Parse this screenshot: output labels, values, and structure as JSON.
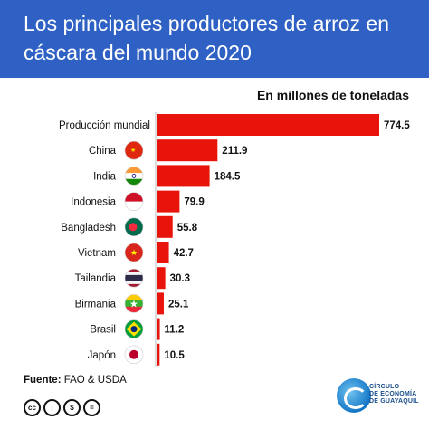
{
  "header": {
    "title": "Los principales productores de arroz en cáscara del mundo 2020"
  },
  "subtitle": "En millones de toneladas",
  "source": {
    "label": "Fuente:",
    "value": "FAO & USDA"
  },
  "logo_text": [
    "CÍRCULO",
    "DE ECONOMÍA",
    "DE GUAYAQUIL"
  ],
  "colors": {
    "header": "#2f61c4",
    "bar": "#e8140c"
  },
  "chart_data": {
    "type": "bar",
    "orientation": "horizontal",
    "title": "Los principales productores de arroz en cáscara del mundo 2020",
    "subtitle": "En millones de toneladas",
    "categories": [
      "Producción mundial",
      "China",
      "India",
      "Indonesia",
      "Bangladesh",
      "Vietnam",
      "Tailandia",
      "Birmania",
      "Brasil",
      "Japón"
    ],
    "values": [
      774.5,
      211.9,
      184.5,
      79.9,
      55.8,
      42.7,
      30.3,
      25.1,
      11.2,
      10.5
    ],
    "value_labels": [
      "774.5",
      "211.9",
      "184.5",
      "79.9",
      "55.8",
      "42.7",
      "30.3",
      "25.1",
      "11.2",
      "10.5"
    ],
    "flags": [
      null,
      "china-flag",
      "india-flag",
      "indonesia-flag",
      "bangladesh-flag",
      "vietnam-flag",
      "thailand-flag",
      "myanmar-flag",
      "brazil-flag",
      "japan-flag"
    ],
    "xlim": [
      0,
      774.5
    ],
    "grid": false,
    "legend": "none"
  }
}
